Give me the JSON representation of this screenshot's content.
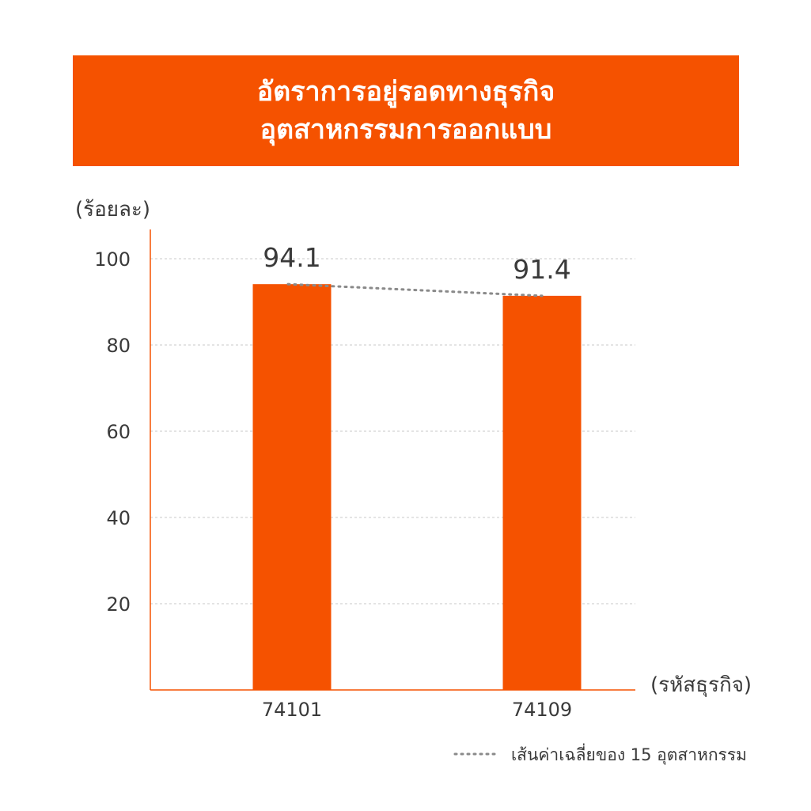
{
  "colors": {
    "accent": "#f55200",
    "grid": "#c8c8c8",
    "avg_line": "#8a8a8a",
    "text": "#3a3a3a"
  },
  "header": {
    "title_line1": "อัตราการอยู่รอดทางธุรกิจ",
    "title_line2": "อุตสาหกรรมการออกแบบ"
  },
  "chart_data": {
    "type": "bar",
    "ylabel": "(ร้อยละ)",
    "xlabel": "(รหัสธุรกิจ)",
    "categories": [
      "74101",
      "74109"
    ],
    "series": [
      {
        "values": [
          94.1,
          91.4
        ],
        "data_labels": [
          "94.1",
          "91.4"
        ]
      }
    ],
    "average_line": {
      "name": "เส้นค่าเฉลี่ยของ 15 อุตสาหกรรม",
      "values": [
        94.1,
        91.4
      ],
      "style": "dotted"
    },
    "yticks": [
      20,
      40,
      60,
      80,
      100
    ],
    "ylim": [
      0,
      107
    ],
    "grid": true,
    "legend_position": "bottom-right"
  }
}
